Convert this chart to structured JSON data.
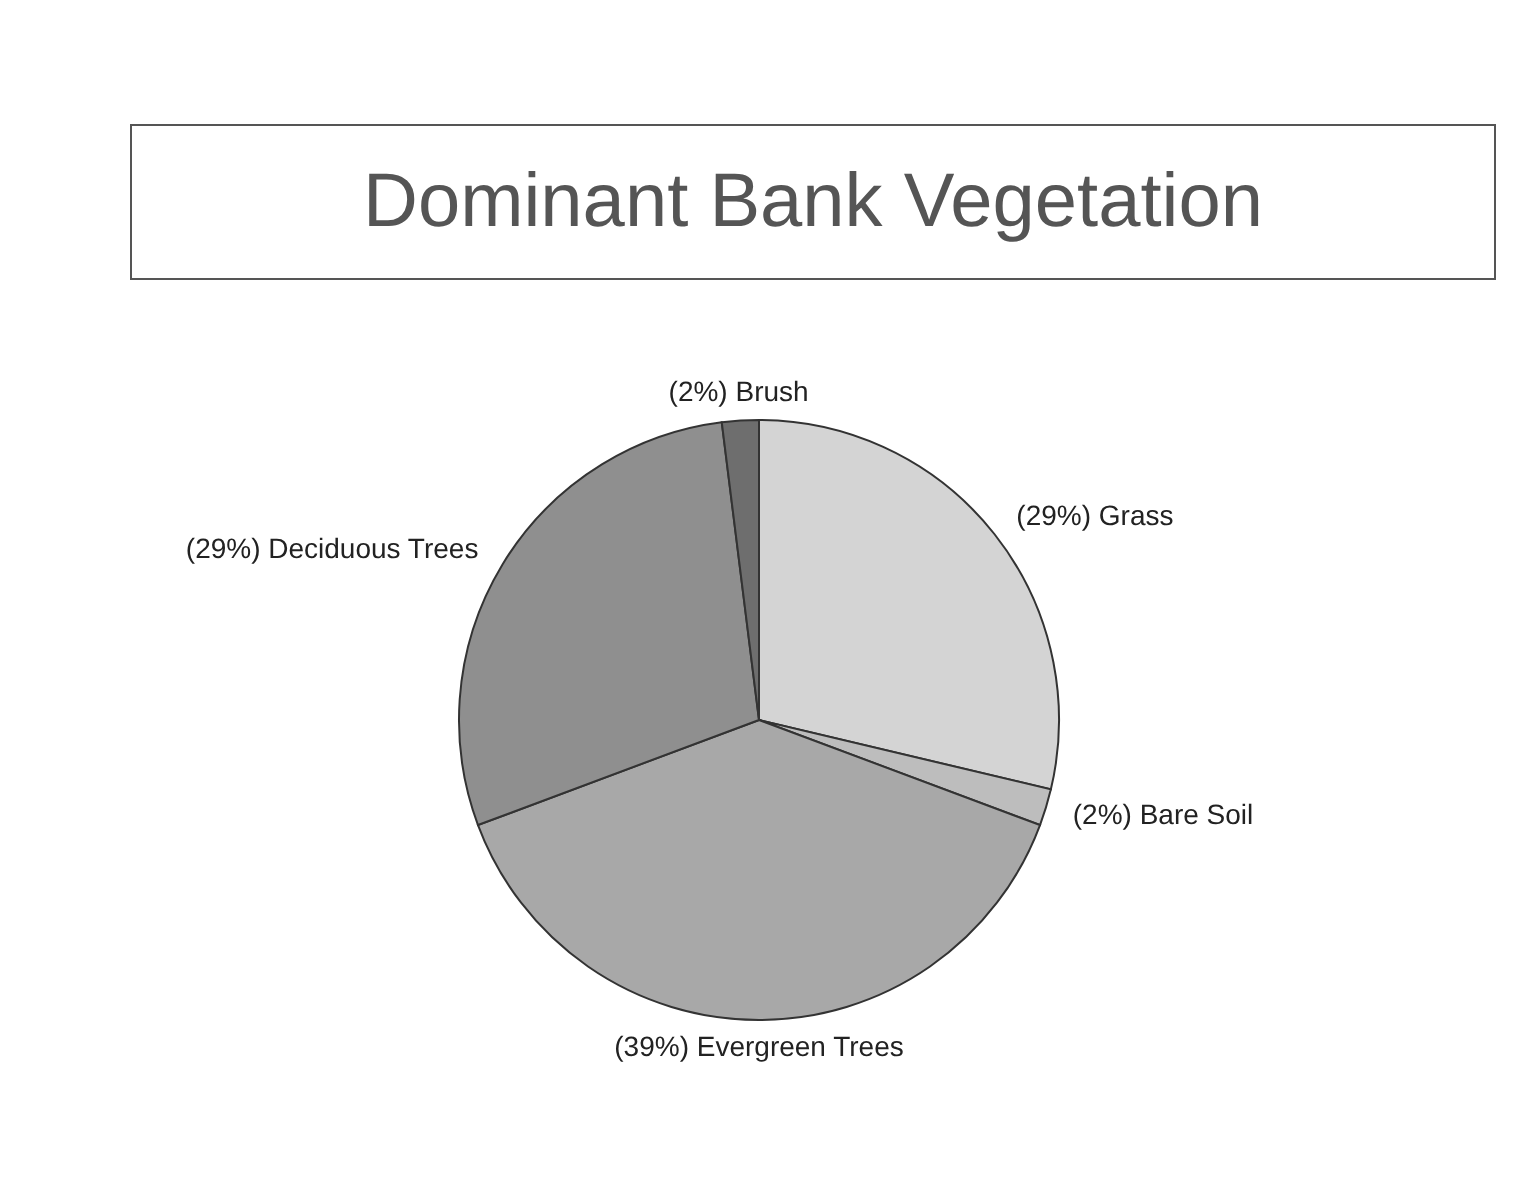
{
  "chart_data": {
    "type": "pie",
    "title": "Dominant Bank Vegetation",
    "categories": [
      "Grass",
      "Bare Soil",
      "Evergreen Trees",
      "Deciduous Trees",
      "Brush"
    ],
    "values": [
      29,
      2,
      39,
      29,
      2
    ],
    "value_labels": [
      "(29%)",
      "(2%)",
      "(39%)",
      "(29%)",
      "(2%)"
    ],
    "colors": [
      "#d4d4d4",
      "#bdbdbd",
      "#a8a8a8",
      "#8f8f8f",
      "#6e6e6e"
    ],
    "legend": false
  }
}
